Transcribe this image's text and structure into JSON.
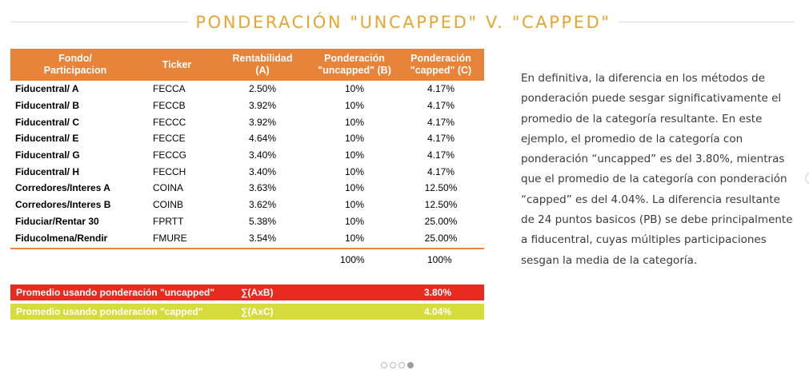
{
  "title": "PONDERACIÓN \"UNCAPPED\" V. \"CAPPED\"",
  "table": {
    "headers": [
      {
        "line1": "Fondo/",
        "line2": "Participacion"
      },
      {
        "line1": "Ticker",
        "line2": ""
      },
      {
        "line1": "Rentabilidad",
        "line2": "(A)"
      },
      {
        "line1": "Ponderación",
        "line2": "\"uncapped\" (B)"
      },
      {
        "line1": "Ponderación",
        "line2": "\"capped\" (C)"
      }
    ],
    "rows": [
      {
        "fund": "Fiducentral/ A",
        "ticker": "FECCA",
        "a": "2.50%",
        "b": "10%",
        "c": "4.17%"
      },
      {
        "fund": "Fiducentral/ B",
        "ticker": "FECCB",
        "a": "3.92%",
        "b": "10%",
        "c": "4.17%"
      },
      {
        "fund": "Fiducentral/ C",
        "ticker": "FECCC",
        "a": "3.92%",
        "b": "10%",
        "c": "4.17%"
      },
      {
        "fund": "Fiducentral/ E",
        "ticker": "FECCE",
        "a": "4.64%",
        "b": "10%",
        "c": "4.17%"
      },
      {
        "fund": "Fiducentral/ G",
        "ticker": "FECCG",
        "a": "3.40%",
        "b": "10%",
        "c": "4.17%"
      },
      {
        "fund": "Fiducentral/ H",
        "ticker": "FECCH",
        "a": "3.40%",
        "b": "10%",
        "c": "4.17%"
      },
      {
        "fund": "Corredores/Interes A",
        "ticker": "COINA",
        "a": "3.63%",
        "b": "10%",
        "c": "12.50%"
      },
      {
        "fund": "Corredores/Interes B",
        "ticker": "COINB",
        "a": "3.62%",
        "b": "10%",
        "c": "12.50%"
      },
      {
        "fund": "Fiduciar/Rentar 30",
        "ticker": "FPRTT",
        "a": "5.38%",
        "b": "10%",
        "c": "25.00%"
      },
      {
        "fund": "Fiducolmena/Rendir",
        "ticker": "FMURE",
        "a": "3.54%",
        "b": "10%",
        "c": "25.00%"
      }
    ],
    "totals": {
      "b": "100%",
      "c": "100%"
    }
  },
  "summary": {
    "uncapped": {
      "label": "Promedio usando ponderación \"uncapped\"",
      "formula": "∑(AxB)",
      "value": "3.80%",
      "color": "#e92b1f"
    },
    "capped": {
      "label": "Promedio usando ponderación \"capped\"",
      "formula": "∑(AxC)",
      "value": "4.04%",
      "color": "#d6dc3b"
    }
  },
  "paragraph": "En definitiva, la diferencia en los métodos de ponderación puede sesgar significativamente el promedio de la categoría resultante. En este ejemplo, el promedio de la categoría con ponderación “uncapped” es del 3.80%, mientras que el promedio de la categoría con ponderación “capped” es del 4.04%. La diferencia resultante de 24 puntos basicos (PB) se debe principalmente a fiducentral, cuyas múltiples participaciones sesgan la media de la categoría.",
  "carousel": {
    "count": 4,
    "active_index": 3
  },
  "colors": {
    "accent": "#e9a52f",
    "header": "#e8833a",
    "text": "#3b3b3b"
  }
}
